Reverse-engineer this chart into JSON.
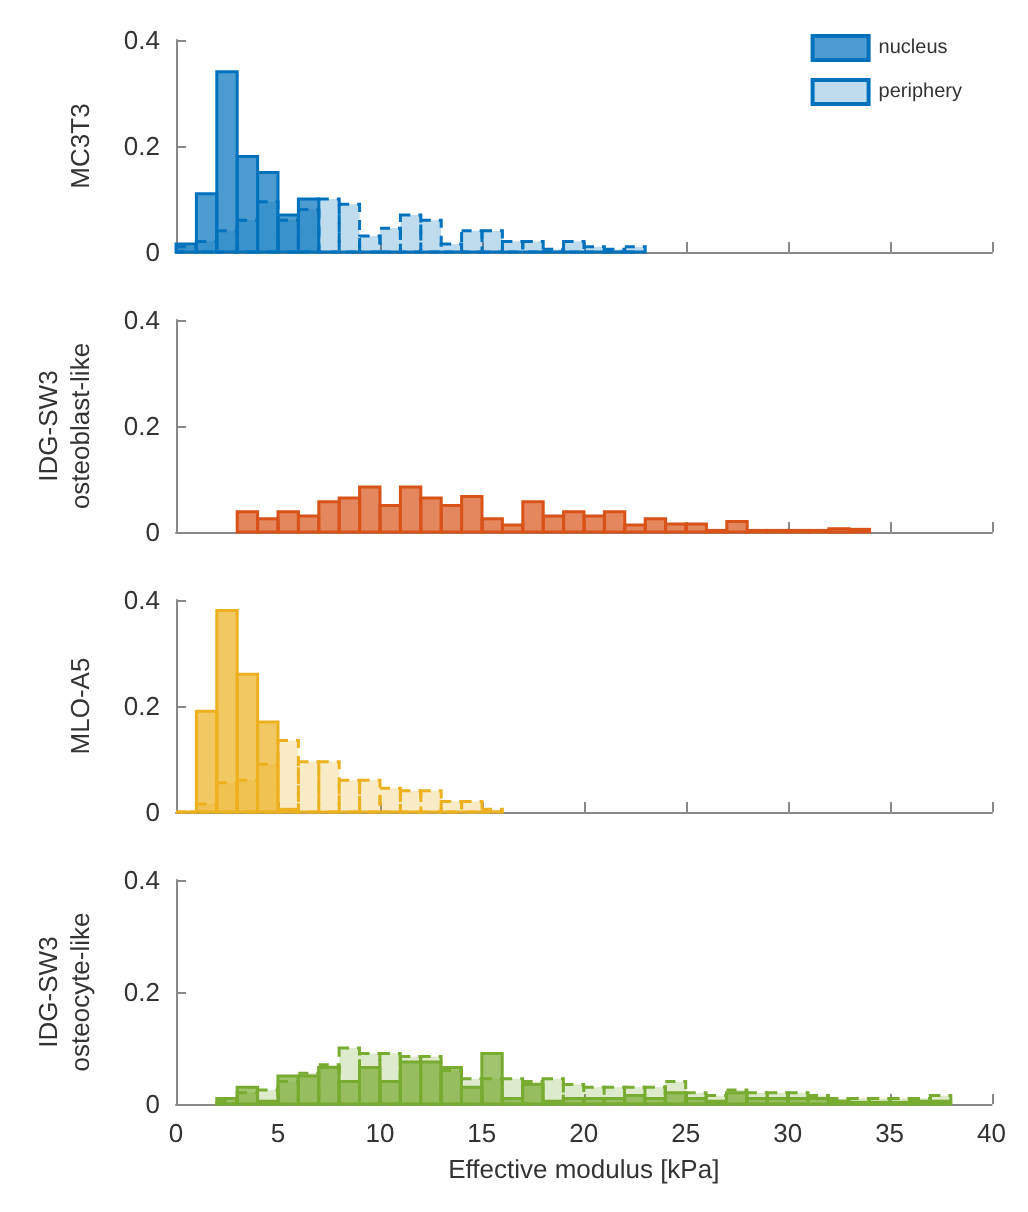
{
  "chart_data": [
    {
      "type": "histogram",
      "ylabel": "MC3T3",
      "bins": [
        0,
        1,
        2,
        3,
        4,
        5,
        6,
        7,
        8,
        9,
        10,
        11,
        12,
        13,
        14,
        15,
        16,
        17,
        18,
        19,
        20,
        21,
        22,
        23
      ],
      "xlim": [
        0,
        40
      ],
      "xticks": [
        0,
        5,
        10,
        15,
        20,
        25,
        30,
        35,
        40
      ],
      "ylim": [
        0,
        0.4
      ],
      "yticks": [
        0,
        0.2,
        0.4
      ],
      "tick_labels": "y",
      "legend": "top right",
      "grid": false,
      "series": [
        {
          "name": "nucleus",
          "color": "#0072bd",
          "line_style": "solid",
          "values": [
            0.015,
            0.11,
            0.34,
            0.18,
            0.15,
            0.07,
            0.1,
            0,
            0,
            0,
            0,
            0,
            0,
            0,
            0,
            0,
            0,
            0,
            0,
            0,
            0,
            0,
            0
          ]
        },
        {
          "name": "periphery",
          "color": "#0072bd",
          "line_style": "dashed",
          "values": [
            0.01,
            0.02,
            0.04,
            0.06,
            0.095,
            0.06,
            0.08,
            0.1,
            0.09,
            0.03,
            0.045,
            0.07,
            0.06,
            0.015,
            0.04,
            0.04,
            0.02,
            0.02,
            0.005,
            0.02,
            0.01,
            0.005,
            0.01
          ]
        }
      ]
    },
    {
      "type": "histogram",
      "ylabel": "IDG-SW3\nosteoblast-like",
      "bins": [
        3,
        4,
        5,
        6,
        7,
        8,
        9,
        10,
        11,
        12,
        13,
        14,
        15,
        16,
        17,
        18,
        19,
        20,
        21,
        22,
        23,
        24,
        25,
        26,
        27,
        28,
        29,
        30,
        31,
        32,
        33,
        34
      ],
      "xlim": [
        0,
        40
      ],
      "xticks": [
        0,
        5,
        10,
        15,
        20,
        25,
        30,
        35,
        40
      ],
      "ylim": [
        0,
        0.4
      ],
      "yticks": [
        0,
        0.2,
        0.4
      ],
      "tick_labels": "y",
      "grid": false,
      "series": [
        {
          "color": "#d95319",
          "line_style": "solid",
          "values": [
            0.038,
            0.025,
            0.038,
            0.03,
            0.057,
            0.064,
            0.085,
            0.05,
            0.085,
            0.064,
            0.05,
            0.067,
            0.025,
            0.013,
            0.057,
            0.03,
            0.038,
            0.03,
            0.038,
            0.013,
            0.025,
            0.015,
            0.015,
            0.003,
            0.02,
            0.003,
            0.003,
            0.003,
            0.003,
            0.006,
            0.005
          ]
        }
      ]
    },
    {
      "type": "histogram",
      "ylabel": "MLO-A5",
      "bins": [
        0,
        1,
        2,
        3,
        4,
        5,
        6,
        7,
        8,
        9,
        10,
        11,
        12,
        13,
        14,
        15,
        16
      ],
      "xlim": [
        0,
        40
      ],
      "xticks": [
        0,
        5,
        10,
        15,
        20,
        25,
        30,
        35,
        40
      ],
      "ylim": [
        0,
        0.4
      ],
      "yticks": [
        0,
        0.2,
        0.4
      ],
      "tick_labels": "y",
      "grid": false,
      "series": [
        {
          "color": "#edb120",
          "line_style": "solid",
          "values": [
            0,
            0.19,
            0.38,
            0.26,
            0.17,
            0.005,
            0,
            0,
            0,
            0,
            0,
            0,
            0,
            0,
            0,
            0
          ]
        },
        {
          "color": "#edb120",
          "line_style": "dashed",
          "values": [
            0,
            0.015,
            0.055,
            0.06,
            0.09,
            0.135,
            0.095,
            0.095,
            0.06,
            0.06,
            0.045,
            0.04,
            0.04,
            0.02,
            0.02,
            0.005
          ]
        }
      ]
    },
    {
      "type": "histogram",
      "ylabel": "IDG-SW3\nosteocyte-like",
      "xlabel": "Effective modulus [kPa]",
      "bins": [
        2,
        3,
        4,
        5,
        6,
        7,
        8,
        9,
        10,
        11,
        12,
        13,
        14,
        15,
        16,
        17,
        18,
        19,
        20,
        21,
        22,
        23,
        24,
        25,
        26,
        27,
        28,
        29,
        30,
        31,
        32,
        33,
        34,
        35,
        36,
        37,
        38
      ],
      "xlim": [
        0,
        40
      ],
      "xticks": [
        0,
        5,
        10,
        15,
        20,
        25,
        30,
        35,
        40
      ],
      "ylim": [
        0,
        0.4
      ],
      "yticks": [
        0,
        0.2,
        0.4
      ],
      "grid": false,
      "series": [
        {
          "color": "#77ac30",
          "line_style": "solid",
          "values": [
            0.01,
            0.03,
            0.005,
            0.05,
            0.05,
            0.065,
            0.04,
            0.065,
            0.04,
            0.075,
            0.075,
            0.065,
            0.03,
            0.09,
            0.01,
            0.035,
            0.005,
            0.01,
            0.01,
            0.01,
            0.015,
            0.01,
            0.02,
            0.01,
            0.005,
            0.02,
            0.01,
            0.01,
            0.01,
            0.01,
            0.005,
            0.003,
            0.003,
            0.003,
            0.005,
            0.005
          ]
        },
        {
          "color": "#77ac30",
          "line_style": "dashed",
          "values": [
            0.005,
            0.02,
            0.025,
            0.04,
            0.055,
            0.07,
            0.1,
            0.09,
            0.09,
            0.085,
            0.085,
            0.06,
            0.045,
            0.045,
            0.045,
            0.04,
            0.045,
            0.035,
            0.03,
            0.03,
            0.03,
            0.03,
            0.04,
            0.02,
            0.015,
            0.025,
            0.02,
            0.02,
            0.02,
            0.015,
            0.01,
            0.01,
            0.01,
            0.01,
            0.01,
            0.015
          ]
        }
      ]
    }
  ]
}
